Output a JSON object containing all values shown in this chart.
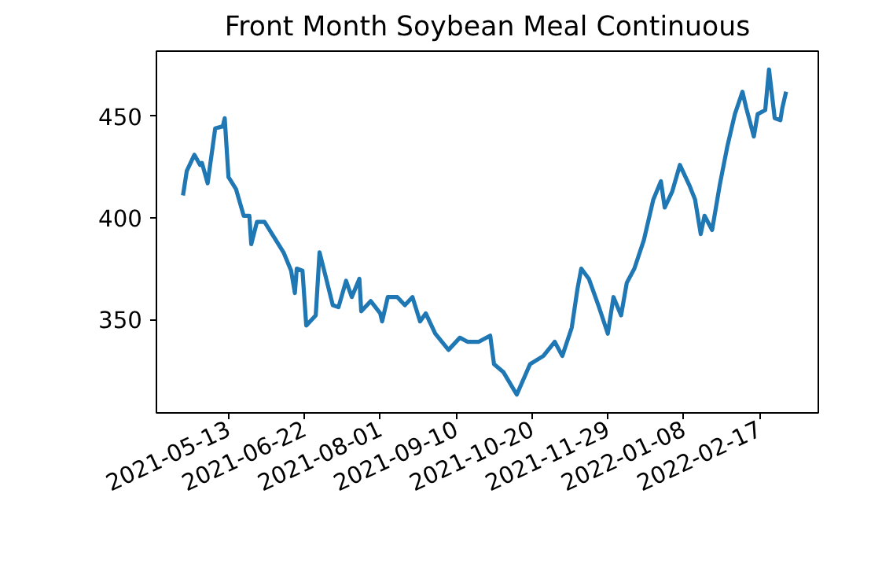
{
  "chart_data": {
    "type": "line",
    "title": "Front Month Soybean Meal Continuous",
    "x": [
      "2021-04-19",
      "2021-04-21",
      "2021-04-25",
      "2021-04-28",
      "2021-04-29",
      "2021-05-02",
      "2021-05-06",
      "2021-05-10",
      "2021-05-11",
      "2021-05-13",
      "2021-05-17",
      "2021-05-21",
      "2021-05-24",
      "2021-05-25",
      "2021-05-28",
      "2021-06-01",
      "2021-06-05",
      "2021-06-11",
      "2021-06-15",
      "2021-06-17",
      "2021-06-18",
      "2021-06-21",
      "2021-06-23",
      "2021-06-28",
      "2021-06-30",
      "2021-07-03",
      "2021-07-07",
      "2021-07-10",
      "2021-07-14",
      "2021-07-17",
      "2021-07-21",
      "2021-07-22",
      "2021-07-27",
      "2021-08-01",
      "2021-08-02",
      "2021-08-05",
      "2021-08-10",
      "2021-08-14",
      "2021-08-18",
      "2021-08-22",
      "2021-08-25",
      "2021-08-30",
      "2021-09-06",
      "2021-09-12",
      "2021-09-16",
      "2021-09-22",
      "2021-09-28",
      "2021-09-30",
      "2021-10-05",
      "2021-10-12",
      "2021-10-19",
      "2021-10-26",
      "2021-11-01",
      "2021-11-05",
      "2021-11-10",
      "2021-11-13",
      "2021-11-15",
      "2021-11-19",
      "2021-11-24",
      "2021-11-29",
      "2021-12-02",
      "2021-12-06",
      "2021-12-09",
      "2021-12-13",
      "2021-12-18",
      "2021-12-23",
      "2021-12-27",
      "2021-12-29",
      "2022-01-02",
      "2022-01-06",
      "2022-01-11",
      "2022-01-14",
      "2022-01-17",
      "2022-01-19",
      "2022-01-23",
      "2022-01-27",
      "2022-01-31",
      "2022-02-04",
      "2022-02-08",
      "2022-02-10",
      "2022-02-14",
      "2022-02-16",
      "2022-02-20",
      "2022-02-22",
      "2022-02-25",
      "2022-02-28",
      "2022-03-01",
      "2022-03-03"
    ],
    "series": [
      {
        "color": "#1f77b4",
        "values": [
          411,
          423,
          431,
          426,
          427,
          417,
          444,
          445,
          449,
          420,
          414,
          401,
          401,
          387,
          398,
          398,
          392,
          383,
          374,
          363,
          375,
          374,
          347,
          352,
          383,
          372,
          357,
          356,
          369,
          361,
          370,
          354,
          359,
          353,
          349,
          361,
          361,
          357,
          361,
          349,
          353,
          343,
          335,
          341,
          339,
          339,
          342,
          328,
          324,
          313,
          328,
          332,
          339,
          332,
          346,
          365,
          375,
          370,
          357,
          343,
          361,
          352,
          368,
          375,
          389,
          409,
          418,
          405,
          413,
          426,
          416,
          409,
          392,
          401,
          394,
          416,
          435,
          451,
          462,
          454,
          440,
          451,
          453,
          473,
          449,
          448,
          454,
          462
        ]
      }
    ],
    "xlim": [
      "2021-04-05",
      "2022-03-20"
    ],
    "ylim": [
      304,
      482
    ],
    "xticks": [
      "2021-05-13",
      "2021-06-22",
      "2021-08-01",
      "2021-09-10",
      "2021-10-20",
      "2021-11-29",
      "2022-01-08",
      "2022-02-17"
    ],
    "yticks": [
      350,
      400,
      450
    ],
    "grid": false,
    "line_style": "solid",
    "marker": "none"
  }
}
